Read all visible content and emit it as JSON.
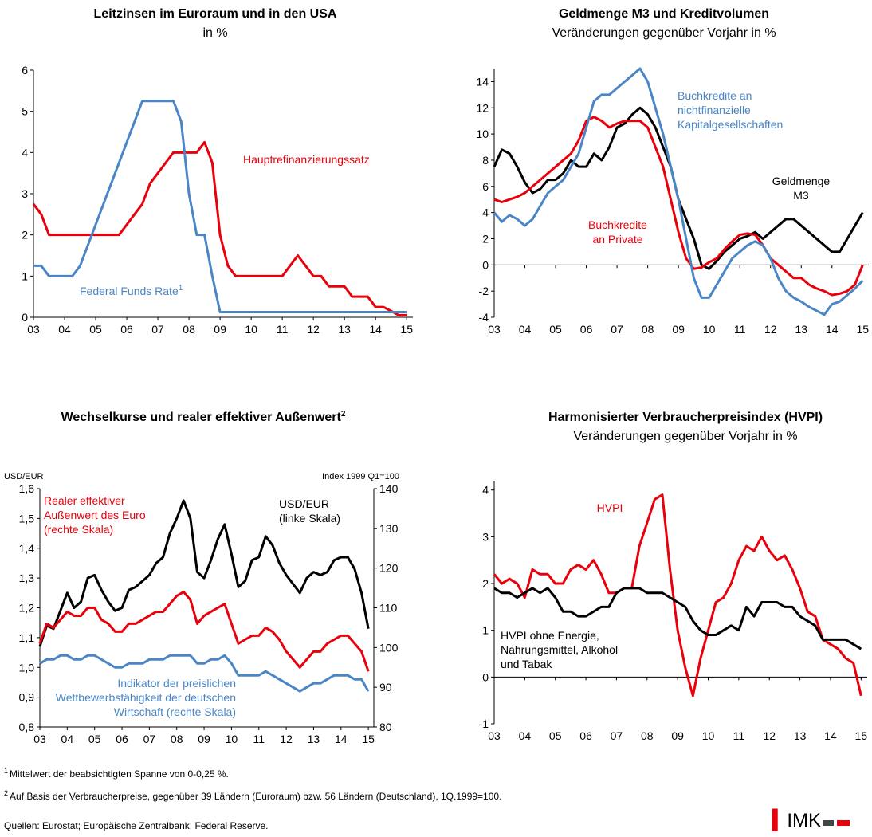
{
  "chart_data": [
    {
      "type": "line",
      "title": "Leitzinsen im Euroraum und in den USA",
      "subtitle": "in %",
      "x": [
        2003,
        2003.25,
        2003.5,
        2003.75,
        2004,
        2004.25,
        2004.5,
        2004.75,
        2005,
        2005.25,
        2005.5,
        2005.75,
        2006,
        2006.25,
        2006.5,
        2006.75,
        2007,
        2007.25,
        2007.5,
        2007.75,
        2008,
        2008.25,
        2008.5,
        2008.75,
        2009,
        2009.25,
        2009.5,
        2009.75,
        2010,
        2010.25,
        2010.5,
        2010.75,
        2011,
        2011.25,
        2011.5,
        2011.75,
        2012,
        2012.25,
        2012.5,
        2012.75,
        2013,
        2013.25,
        2013.5,
        2013.75,
        2014,
        2014.25,
        2014.5,
        2014.75,
        2015
      ],
      "xlim": [
        2003,
        2015.2
      ],
      "xticks": [
        {
          "value": 2003,
          "label": "03"
        },
        {
          "value": 2004,
          "label": "04"
        },
        {
          "value": 2005,
          "label": "05"
        },
        {
          "value": 2006,
          "label": "06"
        },
        {
          "value": 2007,
          "label": "07"
        },
        {
          "value": 2008,
          "label": "08"
        },
        {
          "value": 2009,
          "label": "09"
        },
        {
          "value": 2010,
          "label": "10"
        },
        {
          "value": 2011,
          "label": "11"
        },
        {
          "value": 2012,
          "label": "12"
        },
        {
          "value": 2013,
          "label": "13"
        },
        {
          "value": 2014,
          "label": "14"
        },
        {
          "value": 2015,
          "label": "15"
        }
      ],
      "ylim": [
        0,
        6
      ],
      "yticks": [
        0,
        1,
        2,
        3,
        4,
        5,
        6
      ],
      "series": [
        {
          "name": "Hauptrefinanzierungssatz",
          "color": "#e8000b",
          "values": [
            2.75,
            2.5,
            2,
            2,
            2,
            2,
            2,
            2,
            2,
            2,
            2,
            2,
            2.25,
            2.5,
            2.75,
            3.25,
            3.5,
            3.75,
            4,
            4,
            4,
            4,
            4.25,
            3.75,
            2,
            1.25,
            1,
            1,
            1,
            1,
            1,
            1,
            1,
            1.25,
            1.5,
            1.25,
            1,
            1,
            0.75,
            0.75,
            0.75,
            0.5,
            0.5,
            0.5,
            0.25,
            0.25,
            0.15,
            0.05,
            0.05
          ]
        },
        {
          "name": "Federal Funds Rate",
          "note": "1",
          "color": "#4a86c5",
          "values": [
            1.25,
            1.25,
            1,
            1,
            1,
            1,
            1.25,
            1.75,
            2.25,
            2.75,
            3.25,
            3.75,
            4.25,
            4.75,
            5.25,
            5.25,
            5.25,
            5.25,
            5.25,
            4.75,
            3,
            2,
            2,
            1,
            0.125,
            0.125,
            0.125,
            0.125,
            0.125,
            0.125,
            0.125,
            0.125,
            0.125,
            0.125,
            0.125,
            0.125,
            0.125,
            0.125,
            0.125,
            0.125,
            0.125,
            0.125,
            0.125,
            0.125,
            0.125,
            0.125,
            0.125,
            0.125,
            0.125
          ]
        }
      ]
    },
    {
      "type": "line",
      "title": "Geldmenge M3 und Kreditvolumen",
      "subtitle": "Veränderungen gegenüber Vorjahr in %",
      "x": [
        2003,
        2003.25,
        2003.5,
        2003.75,
        2004,
        2004.25,
        2004.5,
        2004.75,
        2005,
        2005.25,
        2005.5,
        2005.75,
        2006,
        2006.25,
        2006.5,
        2006.75,
        2007,
        2007.25,
        2007.5,
        2007.75,
        2008,
        2008.25,
        2008.5,
        2008.75,
        2009,
        2009.25,
        2009.5,
        2009.75,
        2010,
        2010.25,
        2010.5,
        2010.75,
        2011,
        2011.25,
        2011.5,
        2011.75,
        2012,
        2012.25,
        2012.5,
        2012.75,
        2013,
        2013.25,
        2013.5,
        2013.75,
        2014,
        2014.25,
        2014.5,
        2014.75,
        2015
      ],
      "xlim": [
        2003,
        2015.2
      ],
      "xticks": [
        {
          "value": 2003,
          "label": "03"
        },
        {
          "value": 2004,
          "label": "04"
        },
        {
          "value": 2005,
          "label": "05"
        },
        {
          "value": 2006,
          "label": "06"
        },
        {
          "value": 2007,
          "label": "07"
        },
        {
          "value": 2008,
          "label": "08"
        },
        {
          "value": 2009,
          "label": "09"
        },
        {
          "value": 2010,
          "label": "10"
        },
        {
          "value": 2011,
          "label": "11"
        },
        {
          "value": 2012,
          "label": "12"
        },
        {
          "value": 2013,
          "label": "13"
        },
        {
          "value": 2014,
          "label": "14"
        },
        {
          "value": 2015,
          "label": "15"
        }
      ],
      "ylim": [
        -4,
        15
      ],
      "yticks": [
        -4,
        -2,
        0,
        2,
        4,
        6,
        8,
        10,
        12,
        14
      ],
      "series": [
        {
          "name": "Geldmenge\nM3",
          "color": "#000000",
          "values": [
            7.5,
            8.8,
            8.5,
            7.5,
            6.3,
            5.5,
            5.8,
            6.5,
            6.5,
            7,
            8,
            7.5,
            7.5,
            8.5,
            8,
            9,
            10.5,
            10.8,
            11.5,
            12,
            11.5,
            10.5,
            9,
            7.5,
            5,
            3.5,
            2,
            0,
            -0.3,
            0.3,
            1,
            1.5,
            2,
            2.2,
            2.5,
            2,
            2.5,
            3,
            3.5,
            3.5,
            3,
            2.5,
            2,
            1.5,
            1,
            1,
            2,
            3,
            4
          ]
        },
        {
          "name": "Buchkredite\nan Private",
          "color": "#e8000b",
          "values": [
            5,
            4.8,
            5,
            5.2,
            5.5,
            6,
            6.5,
            7,
            7.5,
            8,
            8.5,
            9.5,
            11,
            11.3,
            11,
            10.5,
            10.8,
            11,
            11,
            11,
            10.5,
            9,
            7.5,
            5,
            2.5,
            0.5,
            -0.3,
            -0.2,
            0.2,
            0.5,
            1.2,
            1.8,
            2.3,
            2.4,
            2.3,
            1.5,
            0.5,
            0,
            -0.5,
            -1,
            -1,
            -1.5,
            -1.8,
            -2,
            -2.3,
            -2.2,
            -2,
            -1.5,
            0
          ]
        },
        {
          "name": "Buchkredite an\nnichtfinanzielle\nKapitalgesellschaften",
          "color": "#4a86c5",
          "values": [
            4,
            3.3,
            3.8,
            3.5,
            3,
            3.5,
            4.5,
            5.5,
            6,
            6.5,
            7.5,
            8.5,
            10.5,
            12.5,
            13,
            13,
            13.5,
            14,
            14.5,
            15,
            14,
            12,
            10,
            7.5,
            5,
            2,
            -1,
            -2.5,
            -2.5,
            -1.5,
            -0.5,
            0.5,
            1,
            1.5,
            1.8,
            1.5,
            0.5,
            -1,
            -2,
            -2.5,
            -2.8,
            -3.2,
            -3.5,
            -3.8,
            -3,
            -2.8,
            -2.3,
            -1.8,
            -1.2
          ]
        }
      ]
    },
    {
      "type": "line",
      "title": "Wechselkurse und realer effektiver Außenwert",
      "title_note": "2",
      "y_label": "USD/EUR",
      "y2_label": "Index 1999 Q1=100",
      "x": [
        2003,
        2003.25,
        2003.5,
        2003.75,
        2004,
        2004.25,
        2004.5,
        2004.75,
        2005,
        2005.25,
        2005.5,
        2005.75,
        2006,
        2006.25,
        2006.5,
        2006.75,
        2007,
        2007.25,
        2007.5,
        2007.75,
        2008,
        2008.25,
        2008.5,
        2008.75,
        2009,
        2009.25,
        2009.5,
        2009.75,
        2010,
        2010.25,
        2010.5,
        2010.75,
        2011,
        2011.25,
        2011.5,
        2011.75,
        2012,
        2012.25,
        2012.5,
        2012.75,
        2013,
        2013.25,
        2013.5,
        2013.75,
        2014,
        2014.25,
        2014.5,
        2014.75,
        2015
      ],
      "xlim": [
        2003,
        2015.2
      ],
      "xticks": [
        {
          "value": 2003,
          "label": "03"
        },
        {
          "value": 2004,
          "label": "04"
        },
        {
          "value": 2005,
          "label": "05"
        },
        {
          "value": 2006,
          "label": "06"
        },
        {
          "value": 2007,
          "label": "07"
        },
        {
          "value": 2008,
          "label": "08"
        },
        {
          "value": 2009,
          "label": "09"
        },
        {
          "value": 2010,
          "label": "10"
        },
        {
          "value": 2011,
          "label": "11"
        },
        {
          "value": 2012,
          "label": "12"
        },
        {
          "value": 2013,
          "label": "13"
        },
        {
          "value": 2014,
          "label": "14"
        },
        {
          "value": 2015,
          "label": "15"
        }
      ],
      "ylim": [
        0.8,
        1.6
      ],
      "yticks": [
        {
          "value": 0.8,
          "label": "0,8"
        },
        {
          "value": 0.9,
          "label": "0,9"
        },
        {
          "value": 1.0,
          "label": "1,0"
        },
        {
          "value": 1.1,
          "label": "1,1"
        },
        {
          "value": 1.2,
          "label": "1,2"
        },
        {
          "value": 1.3,
          "label": "1,3"
        },
        {
          "value": 1.4,
          "label": "1,4"
        },
        {
          "value": 1.5,
          "label": "1,5"
        },
        {
          "value": 1.6,
          "label": "1,6"
        }
      ],
      "y2lim": [
        80,
        140
      ],
      "y2ticks": [
        80,
        90,
        100,
        110,
        120,
        130,
        140
      ],
      "series": [
        {
          "name": "USD/EUR\n(linke Skala)",
          "color": "#000000",
          "values": [
            1.07,
            1.14,
            1.13,
            1.19,
            1.25,
            1.2,
            1.22,
            1.3,
            1.31,
            1.26,
            1.22,
            1.19,
            1.2,
            1.26,
            1.27,
            1.29,
            1.31,
            1.35,
            1.37,
            1.45,
            1.5,
            1.56,
            1.5,
            1.32,
            1.3,
            1.36,
            1.43,
            1.48,
            1.38,
            1.27,
            1.29,
            1.36,
            1.37,
            1.44,
            1.41,
            1.35,
            1.31,
            1.28,
            1.25,
            1.3,
            1.32,
            1.31,
            1.32,
            1.36,
            1.37,
            1.37,
            1.33,
            1.25,
            1.13
          ]
        },
        {
          "name": "Realer effektiver\nAußenwert des Euro\n(rechte Skala)",
          "axis": "y2",
          "color": "#e8000b",
          "values": [
            101,
            106,
            105,
            107,
            109,
            108,
            108,
            110,
            110,
            107,
            106,
            104,
            104,
            106,
            106,
            107,
            108,
            109,
            109,
            111,
            113,
            114,
            112,
            106,
            108,
            109,
            110,
            111,
            106,
            101,
            102,
            103,
            103,
            105,
            104,
            102,
            99,
            97,
            95,
            97,
            99,
            99,
            101,
            102,
            103,
            103,
            101,
            99,
            94
          ]
        },
        {
          "name": "Indikator der preislichen\nWettbewerbsfähigkeit der deutschen\nWirtschaft (rechte Skala)",
          "axis": "y2",
          "color": "#4a86c5",
          "values": [
            96,
            97,
            97,
            98,
            98,
            97,
            97,
            98,
            98,
            97,
            96,
            95,
            95,
            96,
            96,
            96,
            97,
            97,
            97,
            98,
            98,
            98,
            98,
            96,
            96,
            97,
            97,
            98,
            96,
            93,
            93,
            93,
            93,
            94,
            93,
            92,
            91,
            90,
            89,
            90,
            91,
            91,
            92,
            93,
            93,
            93,
            92,
            92,
            89
          ]
        }
      ]
    },
    {
      "type": "line",
      "title": "Harmonisierter Verbraucherpreisindex (HVPI)",
      "subtitle": "Veränderungen gegenüber Vorjahr in %",
      "x": [
        2003,
        2003.25,
        2003.5,
        2003.75,
        2004,
        2004.25,
        2004.5,
        2004.75,
        2005,
        2005.25,
        2005.5,
        2005.75,
        2006,
        2006.25,
        2006.5,
        2006.75,
        2007,
        2007.25,
        2007.5,
        2007.75,
        2008,
        2008.25,
        2008.5,
        2008.75,
        2009,
        2009.25,
        2009.5,
        2009.75,
        2010,
        2010.25,
        2010.5,
        2010.75,
        2011,
        2011.25,
        2011.5,
        2011.75,
        2012,
        2012.25,
        2012.5,
        2012.75,
        2013,
        2013.25,
        2013.5,
        2013.75,
        2014,
        2014.25,
        2014.5,
        2014.75,
        2015
      ],
      "xlim": [
        2003,
        2015.2
      ],
      "xticks": [
        {
          "value": 2003,
          "label": "03"
        },
        {
          "value": 2004,
          "label": "04"
        },
        {
          "value": 2005,
          "label": "05"
        },
        {
          "value": 2006,
          "label": "06"
        },
        {
          "value": 2007,
          "label": "07"
        },
        {
          "value": 2008,
          "label": "08"
        },
        {
          "value": 2009,
          "label": "09"
        },
        {
          "value": 2010,
          "label": "10"
        },
        {
          "value": 2011,
          "label": "11"
        },
        {
          "value": 2012,
          "label": "12"
        },
        {
          "value": 2013,
          "label": "13"
        },
        {
          "value": 2014,
          "label": "14"
        },
        {
          "value": 2015,
          "label": "15"
        }
      ],
      "ylim": [
        -1,
        4.2
      ],
      "yticks": [
        -1,
        0,
        1,
        2,
        3,
        4
      ],
      "series": [
        {
          "name": "HVPI",
          "color": "#e8000b",
          "values": [
            2.2,
            2,
            2.1,
            2,
            1.7,
            2.3,
            2.2,
            2.2,
            2,
            2,
            2.3,
            2.4,
            2.3,
            2.5,
            2.2,
            1.8,
            1.8,
            1.9,
            1.9,
            2.8,
            3.3,
            3.8,
            3.9,
            2.3,
            1,
            0.2,
            -0.4,
            0.4,
            1,
            1.6,
            1.7,
            2,
            2.5,
            2.8,
            2.7,
            3,
            2.7,
            2.5,
            2.6,
            2.3,
            1.9,
            1.4,
            1.3,
            0.8,
            0.7,
            0.6,
            0.4,
            0.3,
            -0.4
          ]
        },
        {
          "name": "HVPI ohne Energie,\nNahrungsmittel, Alkohol\nund Tabak",
          "color": "#000000",
          "values": [
            1.9,
            1.8,
            1.8,
            1.7,
            1.8,
            1.9,
            1.8,
            1.9,
            1.7,
            1.4,
            1.4,
            1.3,
            1.3,
            1.4,
            1.5,
            1.5,
            1.8,
            1.9,
            1.9,
            1.9,
            1.8,
            1.8,
            1.8,
            1.7,
            1.6,
            1.5,
            1.2,
            1,
            0.9,
            0.9,
            1,
            1.1,
            1,
            1.5,
            1.3,
            1.6,
            1.6,
            1.6,
            1.5,
            1.5,
            1.3,
            1.2,
            1.1,
            0.8,
            0.8,
            0.8,
            0.8,
            0.7,
            0.6
          ]
        }
      ]
    }
  ],
  "footnotes": [
    {
      "marker": "1",
      "text": "Mittelwert der beabsichtigten Spanne von 0-0,25 %."
    },
    {
      "marker": "2",
      "text": "Auf Basis der Verbraucherpreise, gegenüber 39 Ländern (Euroraum) bzw. 56 Ländern (Deutschland), 1Q.1999=100."
    }
  ],
  "sources": "Quellen: Eurostat; Europäische Zentralbank; Federal Reserve.",
  "logo": "IMK"
}
